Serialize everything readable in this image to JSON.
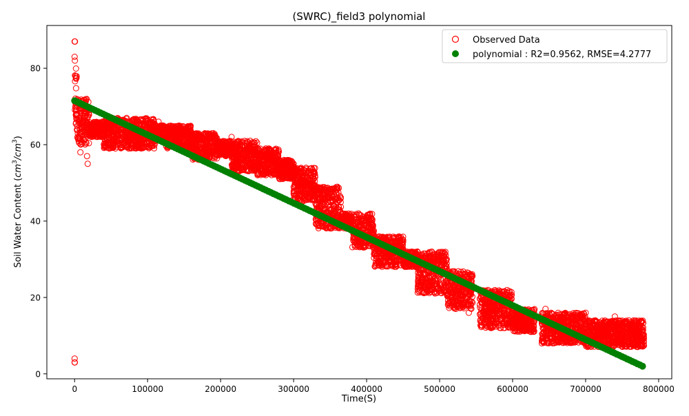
{
  "chart_data": {
    "type": "scatter",
    "title": "(SWRC)_field3 polynomial",
    "xlabel": "Time(S)",
    "ylabel_prefix": "Soil Water Content (",
    "ylabel_unit_a": "cm",
    "ylabel_unit_b": "cm",
    "ylabel_exp": "3",
    "ylabel_slash": "/",
    "ylabel_suffix": ")",
    "xlim": [
      -38000,
      818000
    ],
    "ylim": [
      -1.3,
      91.2
    ],
    "xticks": [
      0,
      100000,
      200000,
      300000,
      400000,
      500000,
      600000,
      700000,
      800000
    ],
    "xtick_labels": [
      "0",
      "100000",
      "200000",
      "300000",
      "400000",
      "500000",
      "600000",
      "700000",
      "800000"
    ],
    "yticks": [
      0,
      20,
      40,
      60,
      80
    ],
    "ytick_labels": [
      "0",
      "20",
      "40",
      "60",
      "80"
    ],
    "grid": false,
    "legend_position": "top-right",
    "series": [
      {
        "name": "Observed Data",
        "marker": "hollow-circle",
        "color": "#ff0000",
        "bands": [
          {
            "x": [
              0,
              3000
            ],
            "y": [
              64,
              80
            ]
          },
          {
            "x": [
              3000,
              20000
            ],
            "y": [
              60,
              72
            ]
          },
          {
            "x": [
              20000,
              40000
            ],
            "y": [
              62,
              66
            ]
          },
          {
            "x": [
              40000,
              110000
            ],
            "y": [
              59,
              67
            ]
          },
          {
            "x": [
              110000,
              125000
            ],
            "y": [
              61,
              65
            ]
          },
          {
            "x": [
              125000,
              160000
            ],
            "y": [
              59,
              65
            ]
          },
          {
            "x": [
              160000,
              195000
            ],
            "y": [
              56,
              63
            ]
          },
          {
            "x": [
              195000,
              215000
            ],
            "y": [
              57,
              61
            ]
          },
          {
            "x": [
              215000,
              250000
            ],
            "y": [
              53,
              61
            ]
          },
          {
            "x": [
              250000,
              280000
            ],
            "y": [
              52,
              59
            ]
          },
          {
            "x": [
              280000,
              300000
            ],
            "y": [
              51,
              56
            ]
          },
          {
            "x": [
              300000,
              330000
            ],
            "y": [
              45,
              54
            ]
          },
          {
            "x": [
              330000,
              365000
            ],
            "y": [
              38,
              49
            ]
          },
          {
            "x": [
              365000,
              380000
            ],
            "y": [
              38,
              42
            ]
          },
          {
            "x": [
              380000,
              410000
            ],
            "y": [
              33,
              42
            ]
          },
          {
            "x": [
              410000,
              450000
            ],
            "y": [
              28,
              36
            ]
          },
          {
            "x": [
              450000,
              470000
            ],
            "y": [
              28,
              32
            ]
          },
          {
            "x": [
              470000,
              510000
            ],
            "y": [
              21,
              32
            ]
          },
          {
            "x": [
              510000,
              545000
            ],
            "y": [
              17,
              27
            ]
          },
          {
            "x": [
              555000,
              600000
            ],
            "y": [
              12,
              22
            ]
          },
          {
            "x": [
              600000,
              630000
            ],
            "y": [
              11,
              17
            ]
          },
          {
            "x": [
              640000,
              700000
            ],
            "y": [
              8,
              16
            ]
          },
          {
            "x": [
              700000,
              735000
            ],
            "y": [
              7,
              14
            ]
          },
          {
            "x": [
              735000,
              780000
            ],
            "y": [
              7,
              14
            ]
          }
        ],
        "outliers": [
          {
            "x": 0,
            "y": 87
          },
          {
            "x": 500,
            "y": 87
          },
          {
            "x": 0,
            "y": 83
          },
          {
            "x": 400,
            "y": 82
          },
          {
            "x": 0,
            "y": 4
          },
          {
            "x": 300,
            "y": 3
          },
          {
            "x": 0,
            "y": 3
          },
          {
            "x": 8000,
            "y": 58
          },
          {
            "x": 18000,
            "y": 55
          },
          {
            "x": 17000,
            "y": 57
          },
          {
            "x": 115000,
            "y": 66
          },
          {
            "x": 215000,
            "y": 62
          },
          {
            "x": 300000,
            "y": 55
          },
          {
            "x": 450000,
            "y": 35
          },
          {
            "x": 640000,
            "y": 8
          },
          {
            "x": 700000,
            "y": 16
          },
          {
            "x": 740000,
            "y": 15
          },
          {
            "x": 540000,
            "y": 16
          },
          {
            "x": 645000,
            "y": 17
          }
        ]
      },
      {
        "name": "polynomial : R2=0.9562, RMSE=4.2777",
        "marker": "filled-circle",
        "color": "#008000",
        "x_range": [
          0,
          778000
        ],
        "y_start": 71.5,
        "y_end": 2
      }
    ]
  }
}
